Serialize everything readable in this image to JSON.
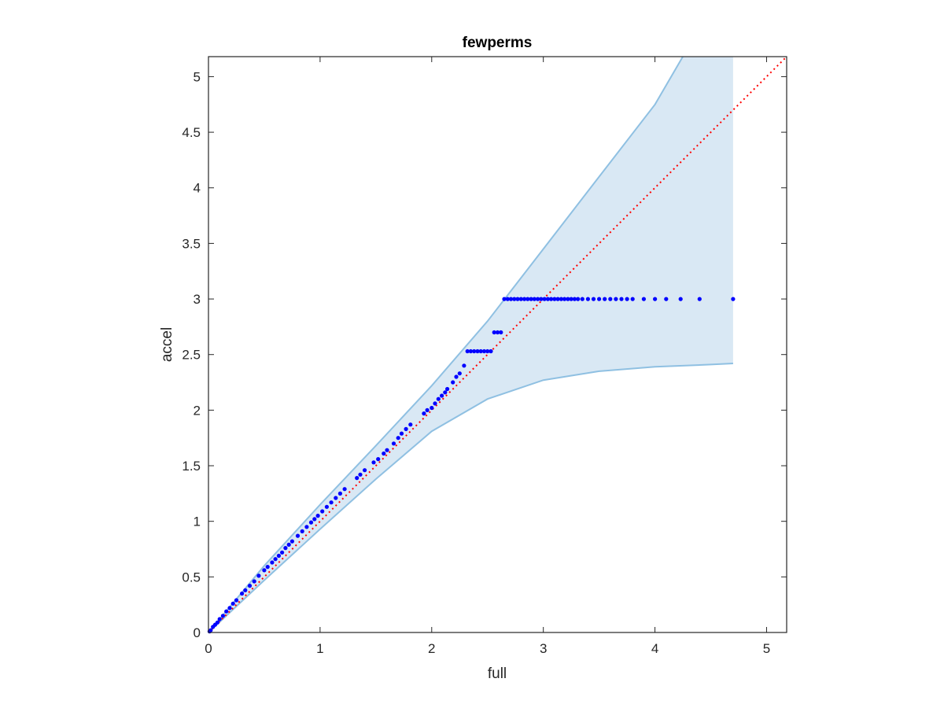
{
  "chart_data": {
    "type": "scatter",
    "title": "fewperms",
    "xlabel": "full",
    "ylabel": "accel",
    "xlim": [
      0,
      5.18
    ],
    "ylim": [
      0,
      5.18
    ],
    "xticks": [
      "0",
      "1",
      "2",
      "3",
      "4",
      "5"
    ],
    "yticks": [
      "0",
      "0.5",
      "1",
      "1.5",
      "2",
      "2.5",
      "3",
      "3.5",
      "4",
      "4.5",
      "5"
    ],
    "grid": false,
    "legend": "none",
    "colors": {
      "points": "#0000ff",
      "reference_line": "#ff0000",
      "band_fill": "#d9e8f4",
      "band_edge": "#8fc0e2",
      "axes": "#262626"
    },
    "reference_line": {
      "style": "dotted",
      "from": [
        0,
        0
      ],
      "to": [
        5.18,
        5.18
      ]
    },
    "band": {
      "upper": [
        [
          0,
          0
        ],
        [
          0.5,
          0.6
        ],
        [
          1,
          1.15
        ],
        [
          1.5,
          1.68
        ],
        [
          2,
          2.22
        ],
        [
          2.5,
          2.8
        ],
        [
          3,
          3.45
        ],
        [
          3.5,
          4.1
        ],
        [
          4,
          4.75
        ],
        [
          4.25,
          5.18
        ]
      ],
      "upper_cap": [
        [
          4.25,
          5.18
        ],
        [
          4.7,
          5.18
        ]
      ],
      "lower": [
        [
          0,
          0
        ],
        [
          0.5,
          0.47
        ],
        [
          1,
          0.93
        ],
        [
          1.5,
          1.38
        ],
        [
          2,
          1.81
        ],
        [
          2.5,
          2.1
        ],
        [
          3,
          2.27
        ],
        [
          3.5,
          2.35
        ],
        [
          4,
          2.39
        ],
        [
          4.5,
          2.41
        ],
        [
          4.7,
          2.42
        ]
      ],
      "x_end": 4.7
    },
    "points": {
      "x": [
        0.01,
        0.02,
        0.04,
        0.06,
        0.08,
        0.1,
        0.13,
        0.16,
        0.19,
        0.22,
        0.25,
        0.3,
        0.33,
        0.37,
        0.41,
        0.45,
        0.5,
        0.53,
        0.57,
        0.6,
        0.63,
        0.66,
        0.69,
        0.72,
        0.75,
        0.8,
        0.84,
        0.88,
        0.92,
        0.95,
        0.98,
        1.02,
        1.06,
        1.1,
        1.14,
        1.18,
        1.22,
        1.33,
        1.36,
        1.4,
        1.48,
        1.52,
        1.57,
        1.6,
        1.66,
        1.7,
        1.73,
        1.77,
        1.81,
        1.93,
        1.96,
        2.0,
        2.03,
        2.06,
        2.09,
        2.12,
        2.14,
        2.19,
        2.22,
        2.25,
        2.29,
        2.32,
        2.35,
        2.38,
        2.41,
        2.44,
        2.47,
        2.5,
        2.53,
        2.56,
        2.59,
        2.62,
        2.65,
        2.68,
        2.71,
        2.74,
        2.77,
        2.8,
        2.83,
        2.86,
        2.89,
        2.92,
        2.95,
        2.98,
        3.01,
        3.04,
        3.07,
        3.1,
        3.13,
        3.16,
        3.19,
        3.22,
        3.25,
        3.28,
        3.31,
        3.35,
        3.4,
        3.45,
        3.5,
        3.55,
        3.6,
        3.65,
        3.7,
        3.75,
        3.8,
        3.9,
        4.0,
        4.1,
        4.23,
        4.4,
        4.7
      ],
      "y": [
        0.01,
        0.02,
        0.05,
        0.07,
        0.09,
        0.12,
        0.15,
        0.19,
        0.22,
        0.26,
        0.29,
        0.35,
        0.38,
        0.42,
        0.46,
        0.51,
        0.56,
        0.59,
        0.63,
        0.66,
        0.69,
        0.72,
        0.76,
        0.79,
        0.82,
        0.87,
        0.91,
        0.95,
        0.99,
        1.02,
        1.05,
        1.09,
        1.13,
        1.17,
        1.21,
        1.25,
        1.29,
        1.39,
        1.42,
        1.46,
        1.53,
        1.56,
        1.61,
        1.64,
        1.7,
        1.75,
        1.79,
        1.83,
        1.87,
        1.97,
        2.0,
        2.02,
        2.06,
        2.1,
        2.13,
        2.16,
        2.19,
        2.25,
        2.3,
        2.33,
        2.4,
        2.53,
        2.53,
        2.53,
        2.53,
        2.53,
        2.53,
        2.53,
        2.53,
        2.7,
        2.7,
        2.7,
        3.0,
        3.0,
        3.0,
        3.0,
        3.0,
        3.0,
        3.0,
        3.0,
        3.0,
        3.0,
        3.0,
        3.0,
        3.0,
        3.0,
        3.0,
        3.0,
        3.0,
        3.0,
        3.0,
        3.0,
        3.0,
        3.0,
        3.0,
        3.0,
        3.0,
        3.0,
        3.0,
        3.0,
        3.0,
        3.0,
        3.0,
        3.0,
        3.0,
        3.0,
        3.0,
        3.0,
        3.0,
        3.0,
        3.0
      ]
    }
  }
}
